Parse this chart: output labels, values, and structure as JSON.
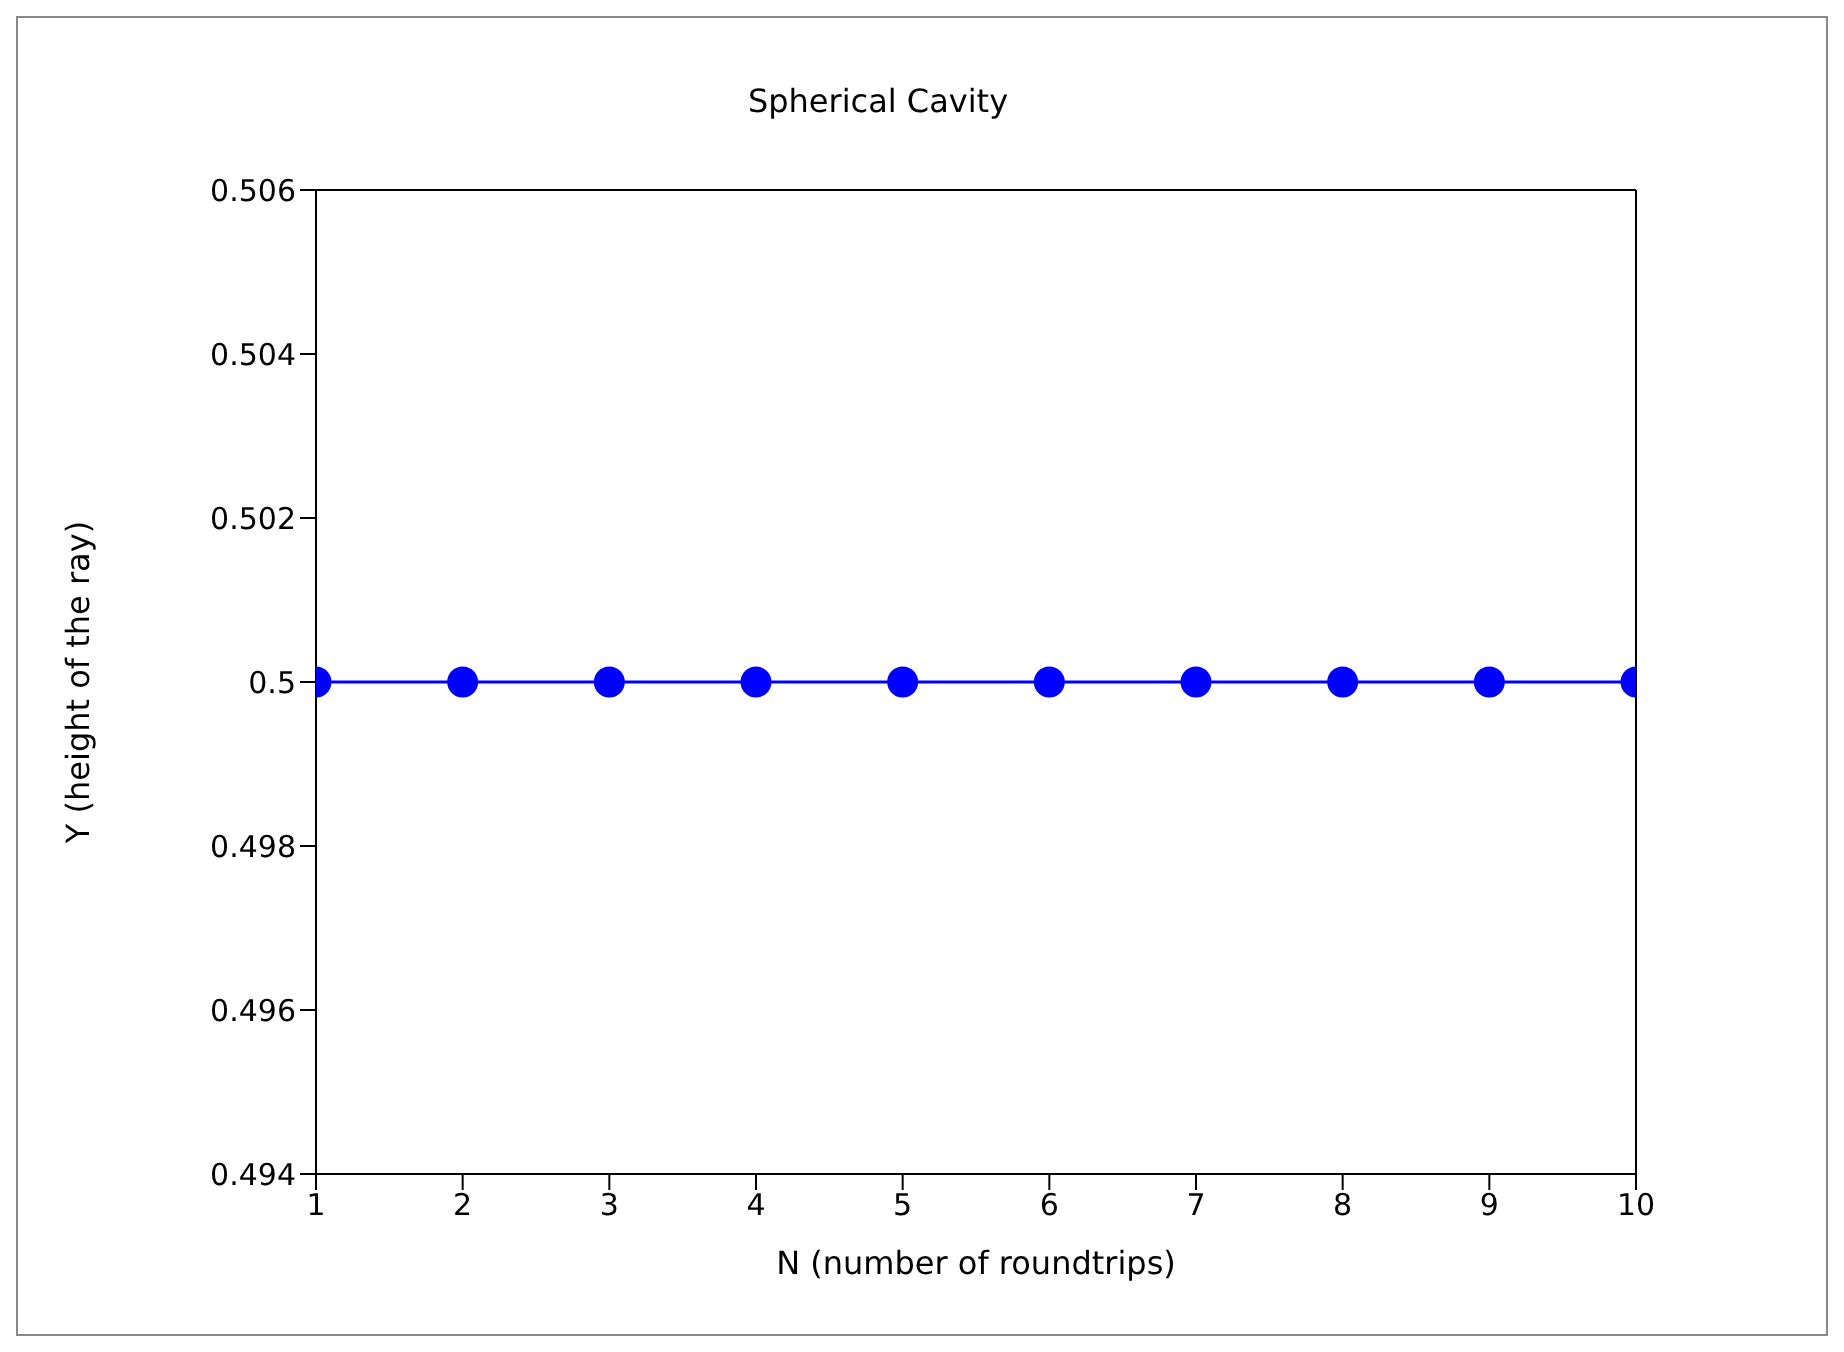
{
  "chart_data": {
    "type": "line",
    "title": "Spherical Cavity",
    "xlabel": "N (number of roundtrips)",
    "ylabel": "Y (height of the ray)",
    "x": [
      1,
      2,
      3,
      4,
      5,
      6,
      7,
      8,
      9,
      10
    ],
    "series": [
      {
        "color": "#0000ff",
        "values": [
          0.5,
          0.5,
          0.5,
          0.5,
          0.5,
          0.5,
          0.5,
          0.5,
          0.5,
          0.5
        ]
      }
    ],
    "xlim": [
      1,
      10
    ],
    "xticks": [
      1,
      2,
      3,
      4,
      5,
      6,
      7,
      8,
      9,
      10
    ],
    "ylim": [
      0.494,
      0.506
    ],
    "yticks": [
      0.494,
      0.496,
      0.498,
      0.5,
      0.502,
      0.504,
      0.506
    ],
    "grid": false,
    "marker": "circle",
    "line_style": "solid"
  }
}
